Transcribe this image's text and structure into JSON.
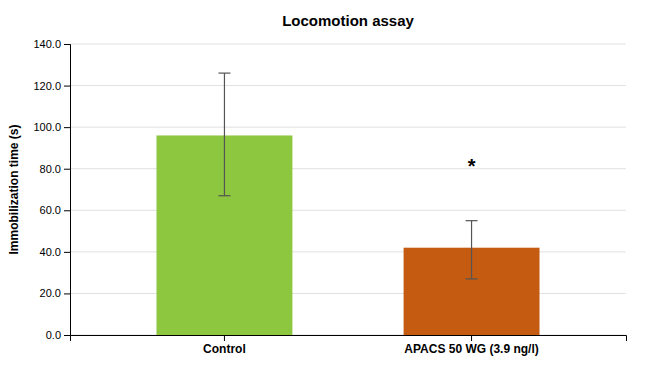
{
  "chart_data": {
    "type": "bar",
    "title": "Locomotion assay",
    "categories": [
      "Control",
      "APACS 50 WG (3.9 ng/l)"
    ],
    "values": [
      96.0,
      42.0
    ],
    "errors_upper": [
      30.0,
      13.0
    ],
    "errors_lower": [
      29.0,
      15.0
    ],
    "colors": [
      "#8dc63f",
      "#c55a11"
    ],
    "ylabel": "Immobilization time (s)",
    "ylim": [
      0,
      140
    ],
    "yticks": [
      {
        "value": 0,
        "label": "0.0"
      },
      {
        "value": 20,
        "label": "20.0"
      },
      {
        "value": 40,
        "label": "40.0"
      },
      {
        "value": 60,
        "label": "60.0"
      },
      {
        "value": 80,
        "label": "80.0"
      },
      {
        "value": 100,
        "label": "100.0"
      },
      {
        "value": 120,
        "label": "120.0"
      },
      {
        "value": 140,
        "label": "140.0"
      }
    ],
    "grid": true,
    "annotations": [
      {
        "text": "*",
        "category": "APACS 50 WG (3.9 ng/l)",
        "y": 78
      }
    ]
  }
}
